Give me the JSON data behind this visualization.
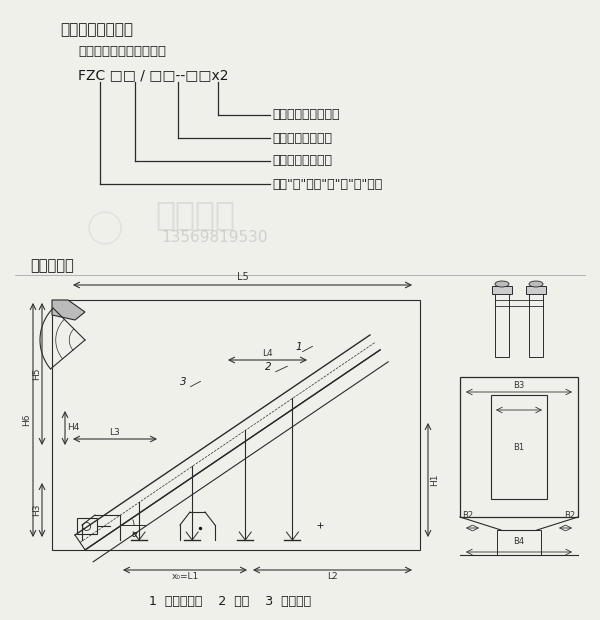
{
  "title1": "产品型号的含义：",
  "subtitle": "双台板重型振动放矿机：",
  "model_text": "FZC □□ / □□--□□x2",
  "ann1": "振动电机功率：千瓦",
  "ann2": "振动台面宽度：米",
  "ann3": "振动台面长度：米",
  "ann4": "振源\"附\"着式\"振\"动\"放\"矿机",
  "struct_label": "结构形式：",
  "bottom_labels": "1  振动放矿机    2  侧板    3  扇形闸门",
  "bg_color": "#f0f0eb",
  "line_color": "#2a2a2a",
  "text_color": "#1a1a1a",
  "dim_color": "#333333",
  "wm_color1": "#c8c8c8",
  "wm_color2": "#b0b0b0"
}
